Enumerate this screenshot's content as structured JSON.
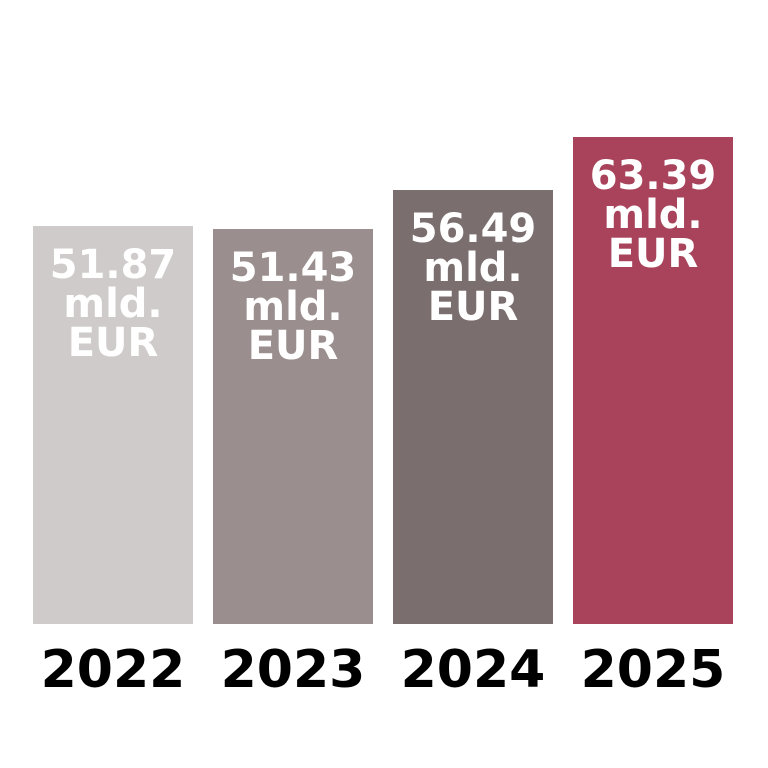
{
  "chart_data": {
    "type": "bar",
    "title": "",
    "xlabel": "",
    "ylabel": "",
    "categories": [
      "2022",
      "2023",
      "2024",
      "2025"
    ],
    "values": [
      51.87,
      51.43,
      56.49,
      63.39
    ],
    "unit_lines": [
      "mld.",
      "EUR"
    ],
    "data_labels": [
      [
        "51.87",
        "mld.",
        "EUR"
      ],
      [
        "51.43",
        "mld.",
        "EUR"
      ],
      [
        "56.49",
        "mld.",
        "EUR"
      ],
      [
        "63.39",
        "mld.",
        "EUR"
      ]
    ],
    "colors": [
      "#cfcbca",
      "#9a8f8e",
      "#7a6f6e",
      "#a8435b"
    ],
    "ylim": [
      0,
      81.25
    ],
    "grid": false,
    "legend": "none"
  }
}
